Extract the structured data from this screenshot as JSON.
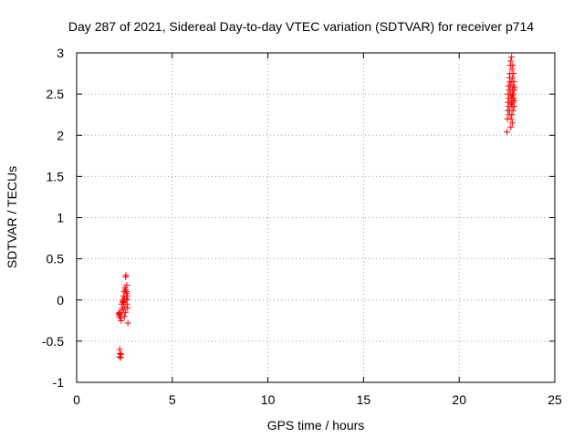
{
  "chart_data": {
    "type": "scatter",
    "title": "Day 287 of 2021, Sidereal Day-to-day VTEC variation (SDTVAR) for receiver p714",
    "xlabel": "GPS time / hours",
    "ylabel": "SDTVAR / TECUs",
    "xlim": [
      0,
      25
    ],
    "ylim": [
      -1,
      3
    ],
    "xticks": [
      "0",
      "5",
      "10",
      "15",
      "20",
      "25"
    ],
    "yticks": [
      "-1",
      "-0.5",
      "0",
      "0.5",
      "1",
      "1.5",
      "2",
      "2.5",
      "3"
    ],
    "grid": true,
    "marker": "plus",
    "color": "#ff0000",
    "series": [
      {
        "name": "p714",
        "points": [
          [
            2.2,
            -0.16
          ],
          [
            2.22,
            -0.18
          ],
          [
            2.24,
            -0.2
          ],
          [
            2.26,
            -0.15
          ],
          [
            2.28,
            -0.17
          ],
          [
            2.3,
            -0.22
          ],
          [
            2.25,
            -0.6
          ],
          [
            2.27,
            -0.65
          ],
          [
            2.25,
            -0.69
          ],
          [
            2.3,
            -0.7
          ],
          [
            2.32,
            -0.66
          ],
          [
            2.33,
            -0.25
          ],
          [
            2.35,
            -0.05
          ],
          [
            2.38,
            -0.1
          ],
          [
            2.4,
            -0.02
          ],
          [
            2.42,
            0.0
          ],
          [
            2.44,
            -0.12
          ],
          [
            2.46,
            0.05
          ],
          [
            2.48,
            0.1
          ],
          [
            2.5,
            0.02
          ],
          [
            2.52,
            -0.08
          ],
          [
            2.53,
            0.15
          ],
          [
            2.55,
            0.12
          ],
          [
            2.56,
            0.28
          ],
          [
            2.58,
            0.3
          ],
          [
            2.6,
            0.08
          ],
          [
            2.62,
            0.18
          ],
          [
            2.63,
            -0.05
          ],
          [
            2.64,
            0.0
          ],
          [
            2.65,
            0.05
          ],
          [
            2.66,
            -0.1
          ],
          [
            2.68,
            -0.28
          ],
          [
            2.55,
            -0.15
          ],
          [
            2.6,
            0.02
          ],
          [
            2.62,
            0.1
          ],
          [
            2.45,
            -0.03
          ],
          [
            2.5,
            -0.2
          ],
          [
            22.5,
            2.04
          ],
          [
            22.52,
            2.2
          ],
          [
            22.54,
            2.3
          ],
          [
            22.55,
            2.4
          ],
          [
            22.56,
            2.5
          ],
          [
            22.57,
            2.35
          ],
          [
            22.58,
            2.6
          ],
          [
            22.6,
            2.45
          ],
          [
            22.61,
            2.25
          ],
          [
            22.62,
            2.55
          ],
          [
            22.63,
            2.7
          ],
          [
            22.64,
            2.3
          ],
          [
            22.65,
            2.75
          ],
          [
            22.66,
            2.4
          ],
          [
            22.67,
            2.6
          ],
          [
            22.68,
            2.85
          ],
          [
            22.69,
            2.5
          ],
          [
            22.7,
            2.9
          ],
          [
            22.71,
            2.2
          ],
          [
            22.72,
            2.65
          ],
          [
            22.73,
            2.45
          ],
          [
            22.74,
            2.95
          ],
          [
            22.75,
            2.35
          ],
          [
            22.76,
            2.8
          ],
          [
            22.77,
            2.55
          ],
          [
            22.78,
            2.15
          ],
          [
            22.79,
            2.7
          ],
          [
            22.8,
            2.4
          ],
          [
            22.81,
            2.6
          ],
          [
            22.82,
            2.3
          ],
          [
            22.83,
            2.5
          ],
          [
            22.84,
            2.75
          ],
          [
            22.85,
            2.45
          ],
          [
            22.86,
            2.65
          ],
          [
            22.87,
            2.35
          ],
          [
            22.88,
            2.55
          ],
          [
            22.89,
            2.42
          ],
          [
            22.9,
            2.58
          ],
          [
            22.7,
            2.1
          ],
          [
            22.75,
            2.25
          ],
          [
            22.8,
            2.85
          ],
          [
            22.65,
            2.65
          ],
          [
            22.72,
            2.38
          ],
          [
            22.78,
            2.48
          ]
        ]
      }
    ]
  }
}
